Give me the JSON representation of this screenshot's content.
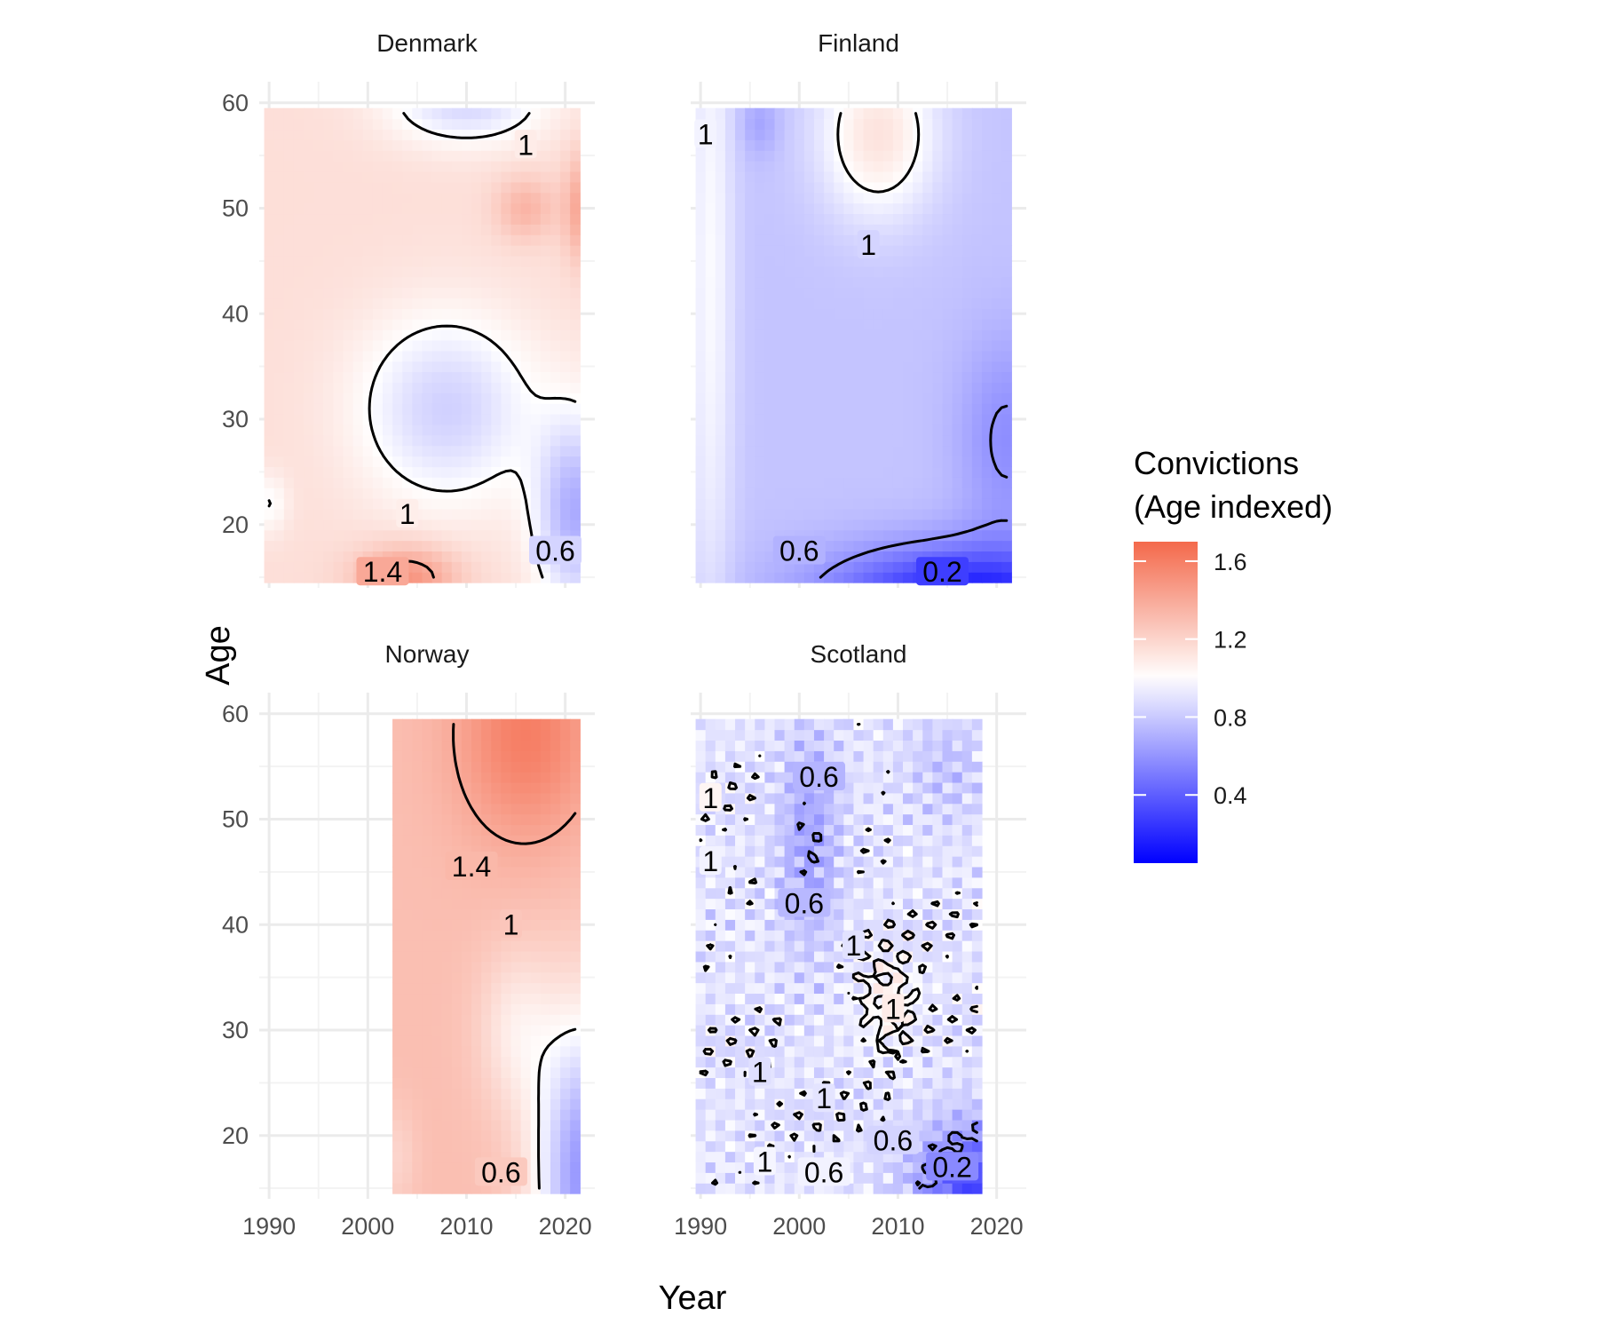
{
  "chart_data": {
    "type": "heatmap",
    "subtype": "faceted-contour-heatmap",
    "title": "",
    "xlabel": "Year",
    "ylabel": "Age",
    "xlim": [
      1989,
      2023
    ],
    "ylim": [
      14,
      62
    ],
    "x_ticks": [
      1990,
      2000,
      2010,
      2020
    ],
    "y_ticks": [
      20,
      30,
      40,
      50,
      60
    ],
    "grid": true,
    "facet_layout": "2x2",
    "legend": {
      "title_lines": [
        "Convictions",
        "(Age indexed)"
      ],
      "ticks": [
        0.4,
        0.8,
        1.2,
        1.6
      ],
      "tick_labels": [
        "0.4",
        "0.8",
        "1.2",
        "1.6"
      ],
      "range": [
        0.05,
        1.7
      ],
      "midpoint": 1.0,
      "low_color": "#0000ff",
      "mid_color": "#ffffff",
      "high_color": "#f4694b",
      "placement": "right"
    },
    "panels": [
      {
        "name": "Denmark",
        "year_range": [
          1990,
          2021
        ],
        "age_range": [
          15,
          59
        ],
        "contour_labels": [
          {
            "text": "1",
            "x": 2016,
            "y": 56
          },
          {
            "text": "1",
            "x": 2004,
            "y": 21
          },
          {
            "text": "1.4",
            "x": 2001.5,
            "y": 15.5
          },
          {
            "text": "0.6",
            "x": 2019,
            "y": 17.5
          }
        ]
      },
      {
        "name": "Finland",
        "year_range": [
          1990,
          2021
        ],
        "age_range": [
          15,
          59
        ],
        "contour_labels": [
          {
            "text": "1",
            "x": 1990.5,
            "y": 57
          },
          {
            "text": "1",
            "x": 2007,
            "y": 46.5
          },
          {
            "text": "0.6",
            "x": 2000,
            "y": 17.5
          },
          {
            "text": "0.2",
            "x": 2014.5,
            "y": 15.5
          }
        ]
      },
      {
        "name": "Norway",
        "year_range": [
          2003,
          2021
        ],
        "age_range": [
          15,
          59
        ],
        "contour_labels": [
          {
            "text": "1.4",
            "x": 2010.5,
            "y": 45.5
          },
          {
            "text": "1",
            "x": 2014.5,
            "y": 40
          },
          {
            "text": "0.6",
            "x": 2013.5,
            "y": 16.5
          }
        ]
      },
      {
        "name": "Scotland",
        "year_range": [
          1990,
          2018
        ],
        "age_range": [
          15,
          59
        ],
        "contour_labels": [
          {
            "text": "1",
            "x": 1991,
            "y": 52
          },
          {
            "text": "1",
            "x": 1991,
            "y": 46
          },
          {
            "text": "0.6",
            "x": 2002,
            "y": 54
          },
          {
            "text": "0.6",
            "x": 2000.5,
            "y": 42
          },
          {
            "text": "1",
            "x": 2005.5,
            "y": 38
          },
          {
            "text": "1",
            "x": 2009.5,
            "y": 32
          },
          {
            "text": "1",
            "x": 1996,
            "y": 26
          },
          {
            "text": "1",
            "x": 2002.5,
            "y": 23.5
          },
          {
            "text": "1",
            "x": 1996.5,
            "y": 17.5
          },
          {
            "text": "0.6",
            "x": 2002.5,
            "y": 16.5
          },
          {
            "text": "0.6",
            "x": 2009.5,
            "y": 19.5
          },
          {
            "text": "0.2",
            "x": 2015.5,
            "y": 17
          }
        ]
      }
    ]
  }
}
